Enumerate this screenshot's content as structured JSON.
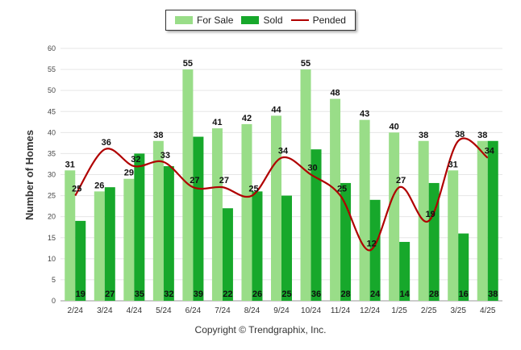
{
  "chart_data": {
    "type": "bar",
    "categories": [
      "2/24",
      "3/24",
      "4/24",
      "5/24",
      "6/24",
      "7/24",
      "8/24",
      "9/24",
      "10/24",
      "11/24",
      "12/24",
      "1/25",
      "2/25",
      "3/25",
      "4/25"
    ],
    "series": [
      {
        "name": "For Sale",
        "type": "bar",
        "color": "#99dd88",
        "values": [
          31,
          26,
          29,
          38,
          55,
          41,
          42,
          44,
          55,
          48,
          43,
          40,
          38,
          31,
          38
        ]
      },
      {
        "name": "Sold",
        "type": "bar",
        "color": "#17a82b",
        "values": [
          19,
          27,
          35,
          32,
          39,
          22,
          26,
          25,
          36,
          28,
          24,
          14,
          28,
          16,
          38
        ]
      },
      {
        "name": "Pended",
        "type": "line",
        "color": "#b00000",
        "values": [
          25,
          36,
          32,
          33,
          27,
          27,
          25,
          34,
          30,
          25,
          12,
          27,
          19,
          38,
          34
        ]
      }
    ],
    "ylabel": "Number of Homes",
    "xlabel": "",
    "ylim": [
      0,
      60
    ],
    "yticks": [
      0,
      5,
      10,
      15,
      20,
      25,
      30,
      35,
      40,
      45,
      50,
      55,
      60
    ],
    "grid": true,
    "legend_position": "top-center"
  },
  "footer": {
    "copyright": "Copyright © Trendgraphix, Inc."
  }
}
